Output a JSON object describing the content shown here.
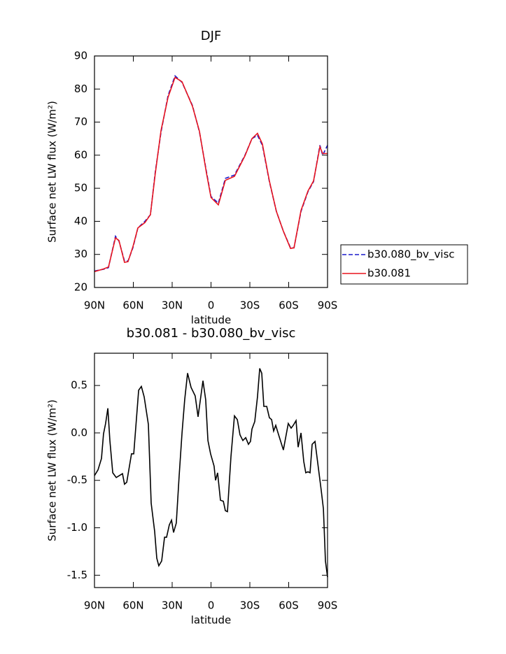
{
  "chart_data": [
    {
      "type": "line",
      "title": "DJF",
      "xlabel": "latitude",
      "ylabel": "Surface net LW flux (W/m²)",
      "x": [
        90,
        83,
        79.2,
        73.8,
        71.1,
        66.8,
        64.1,
        60.3,
        56.5,
        51.1,
        46.8,
        43,
        38.6,
        33.2,
        27.8,
        22.4,
        14.3,
        8.9,
        3.5,
        0,
        -5.7,
        -11.1,
        -18.1,
        -26.2,
        -31.6,
        -35.9,
        -39.7,
        -45.1,
        -50.5,
        -55.9,
        -61.4,
        -64.1,
        -69.5,
        -74.9,
        -79.2,
        -84.1,
        -86.2,
        -90
      ],
      "series": [
        {
          "name": "b30.080_bv_visc",
          "color": "#1a1acc",
          "style": "dashed",
          "values": [
            25,
            25.5,
            26,
            35.5,
            34,
            28,
            28,
            32,
            38,
            40,
            42,
            55,
            67,
            78,
            84,
            82,
            75,
            67,
            55,
            47.5,
            45.5,
            53,
            54,
            60,
            65,
            66,
            63,
            52,
            43,
            37,
            32,
            32,
            43,
            49,
            52,
            63,
            60,
            63
          ]
        },
        {
          "name": "b30.081",
          "color": "#e8141e",
          "style": "solid",
          "values": [
            24.8,
            25.6,
            26.2,
            35,
            34.2,
            27.6,
            27.8,
            32.3,
            38,
            39.6,
            42,
            54.5,
            67.5,
            77.5,
            83.5,
            82.2,
            74.8,
            67.2,
            54.6,
            47.2,
            45,
            52.4,
            53.6,
            59.8,
            65,
            66.6,
            63.4,
            52.2,
            43,
            37,
            31.8,
            32,
            43.3,
            49.2,
            52.2,
            62.5,
            60.5,
            60.5
          ]
        }
      ],
      "xlim": [
        90,
        -90
      ],
      "xticks": [
        {
          "value": 90,
          "label": "90N"
        },
        {
          "value": 60,
          "label": "60N"
        },
        {
          "value": 30,
          "label": "30N"
        },
        0,
        {
          "value": -30,
          "label": "30S"
        },
        {
          "value": -60,
          "label": "60S"
        },
        {
          "value": -90,
          "label": "90S"
        }
      ],
      "ylim": [
        20,
        90
      ],
      "yticks": [
        20,
        30,
        40,
        50,
        60,
        70,
        80,
        90
      ],
      "legend": "right"
    },
    {
      "type": "line",
      "title": "b30.081 - b30.080_bv_visc",
      "xlabel": "latitude",
      "ylabel": "Surface net LW flux (W/m²)",
      "x": [
        90,
        87.3,
        84.6,
        83,
        81.4,
        79.7,
        78.1,
        75.9,
        73.2,
        68.4,
        66.8,
        65.1,
        61.4,
        59.7,
        55.9,
        53.8,
        51.6,
        48.4,
        46.2,
        43.5,
        41.9,
        40.3,
        38.1,
        35.9,
        34.3,
        32.2,
        30.5,
        28.9,
        26.8,
        24.6,
        22.4,
        20.3,
        18.1,
        15.4,
        12.2,
        10,
        6.2,
        4.1,
        2.4,
        0.3,
        -2.4,
        -3.5,
        -5.1,
        -7.3,
        -9.5,
        -11.1,
        -12.7,
        -15.4,
        -17,
        -18.1,
        -20.3,
        -22.4,
        -24.6,
        -26.8,
        -28.9,
        -30.5,
        -31.6,
        -33.8,
        -35.9,
        -37.6,
        -39.2,
        -40.8,
        -43,
        -45.1,
        -46.8,
        -48.4,
        -50,
        -52.2,
        -55.9,
        -59.7,
        -61.9,
        -63.5,
        -65.7,
        -67.3,
        -69.5,
        -71.6,
        -73.2,
        -74.9,
        -76.5,
        -78.1,
        -80.3,
        -83,
        -85.1,
        -86.8,
        -88.4,
        -90
      ],
      "series": [
        {
          "name": "b30.081 - b30.080_bv_visc",
          "color": "#000000",
          "style": "solid",
          "values": [
            -0.45,
            -0.39,
            -0.27,
            -0.01,
            0.1,
            0.26,
            -0.08,
            -0.42,
            -0.47,
            -0.43,
            -0.54,
            -0.52,
            -0.22,
            -0.22,
            0.45,
            0.49,
            0.38,
            0.09,
            -0.74,
            -1.04,
            -1.32,
            -1.4,
            -1.35,
            -1.1,
            -1.1,
            -0.97,
            -0.92,
            -1.05,
            -0.95,
            -0.45,
            0,
            0.35,
            0.63,
            0.48,
            0.39,
            0.17,
            0.55,
            0.35,
            -0.08,
            -0.22,
            -0.35,
            -0.5,
            -0.42,
            -0.71,
            -0.72,
            -0.82,
            -0.83,
            -0.25,
            0,
            0.18,
            0.14,
            -0.02,
            -0.08,
            -0.05,
            -0.12,
            -0.09,
            0.04,
            0.12,
            0.38,
            0.68,
            0.63,
            0.28,
            0.28,
            0.16,
            0.14,
            0.02,
            0.08,
            -0.02,
            -0.18,
            0.1,
            0.05,
            0.08,
            0.13,
            -0.15,
            0,
            -0.3,
            -0.42,
            -0.41,
            -0.42,
            -0.12,
            -0.09,
            -0.38,
            -0.6,
            -0.8,
            -1.35,
            -1.52
          ]
        }
      ],
      "xlim": [
        90,
        -90
      ],
      "xticks": [
        {
          "value": 90,
          "label": "90N"
        },
        {
          "value": 60,
          "label": "60N"
        },
        {
          "value": 30,
          "label": "30N"
        },
        0,
        {
          "value": -30,
          "label": "30S"
        },
        {
          "value": -60,
          "label": "60S"
        },
        {
          "value": -90,
          "label": "90S"
        }
      ],
      "ylim": [
        -1.63,
        0.84
      ],
      "yticks": [
        {
          "value": -1.5,
          "label": "-1.5"
        },
        {
          "value": -1,
          "label": "-1.0"
        },
        -0.5,
        {
          "value": 0,
          "label": "0.0"
        },
        0.5
      ]
    }
  ]
}
